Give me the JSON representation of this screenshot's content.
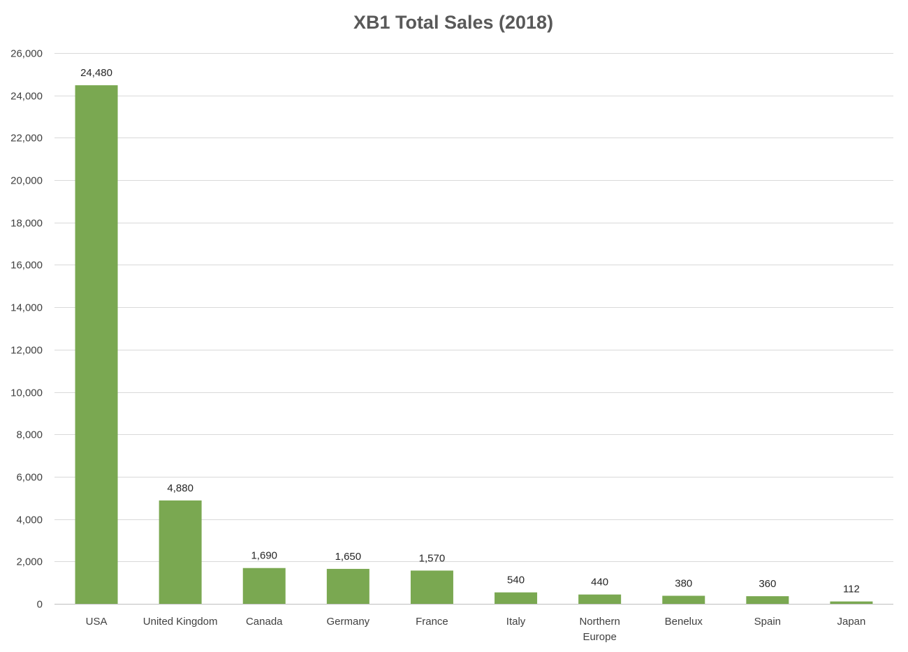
{
  "chart_data": {
    "type": "bar",
    "title": "XB1 Total Sales (2018)",
    "xlabel": "",
    "ylabel": "",
    "categories": [
      "USA",
      "United Kingdom",
      "Canada",
      "Germany",
      "France",
      "Italy",
      "Northern Europe",
      "Benelux",
      "Spain",
      "Japan"
    ],
    "category_lines": [
      [
        "USA"
      ],
      [
        "United Kingdom"
      ],
      [
        "Canada"
      ],
      [
        "Germany"
      ],
      [
        "France"
      ],
      [
        "Italy"
      ],
      [
        "Northern",
        "Europe"
      ],
      [
        "Benelux"
      ],
      [
        "Spain"
      ],
      [
        "Japan"
      ]
    ],
    "values": [
      24480,
      4880,
      1690,
      1650,
      1570,
      540,
      440,
      380,
      360,
      112
    ],
    "value_labels": [
      "24,480",
      "4,880",
      "1,690",
      "1,650",
      "1,570",
      "540",
      "440",
      "380",
      "360",
      "112"
    ],
    "ylim": [
      0,
      26000
    ],
    "yticks": [
      0,
      2000,
      4000,
      6000,
      8000,
      10000,
      12000,
      14000,
      16000,
      18000,
      20000,
      22000,
      24000,
      26000
    ],
    "ytick_labels": [
      "0",
      "2,000",
      "4,000",
      "6,000",
      "8,000",
      "10,000",
      "12,000",
      "14,000",
      "16,000",
      "18,000",
      "20,000",
      "22,000",
      "24,000",
      "26,000"
    ],
    "grid": true,
    "legend": "none",
    "bar_color": "#7aa851"
  }
}
